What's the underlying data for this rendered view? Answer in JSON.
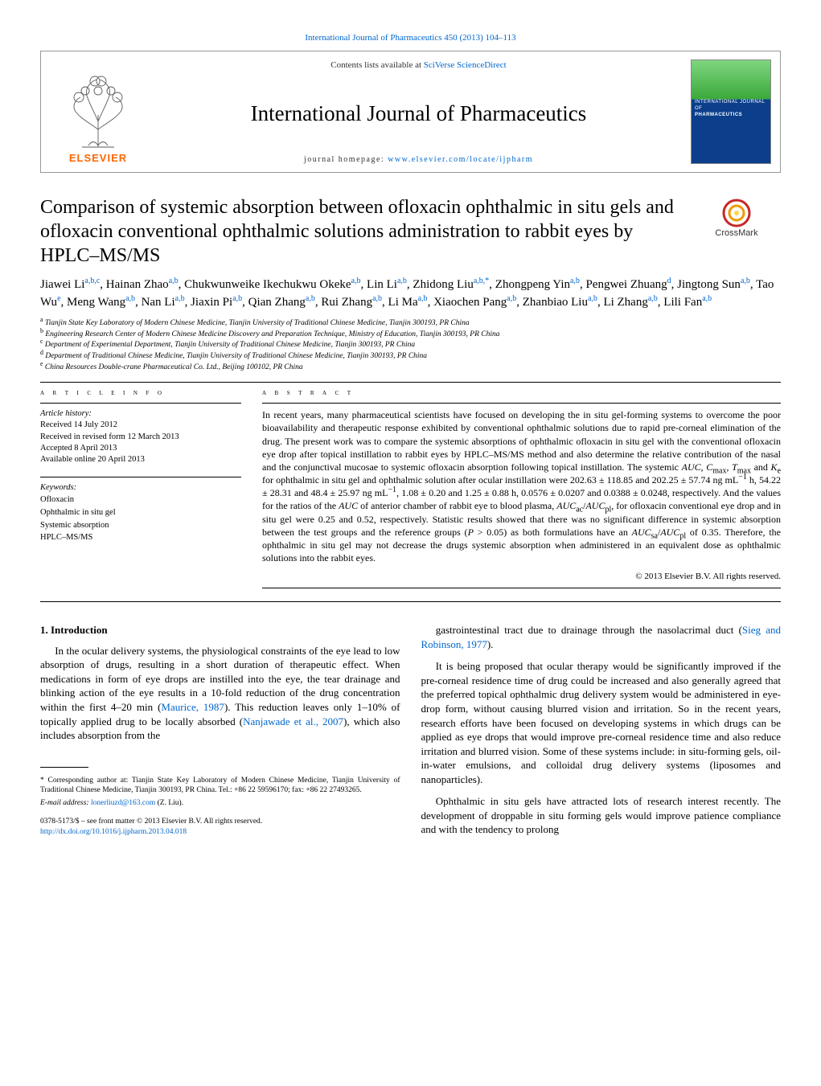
{
  "top_citation": {
    "text": "International Journal of Pharmaceutics 450 (2013) 104–113",
    "color": "#0066cc",
    "fontsize": 11
  },
  "header": {
    "contents_prefix": "Contents lists available at ",
    "contents_link": "SciVerse ScienceDirect",
    "journal_name": "International Journal of Pharmaceutics",
    "homepage_prefix": "journal homepage: ",
    "homepage_url": "www.elsevier.com/locate/ijpharm",
    "publisher_word": "ELSEVIER",
    "publisher_color": "#ff6600",
    "cover_label_top": "INTERNATIONAL JOURNAL OF",
    "cover_label_main": "PHARMACEUTICS",
    "cover_colors": {
      "top": "#7fd67f",
      "mid": "#3aa83a",
      "bottom": "#0b3f8c"
    }
  },
  "crossmark_label": "CrossMark",
  "title": "Comparison of systemic absorption between ofloxacin ophthalmic in situ gels and ofloxacin conventional ophthalmic solutions administration to rabbit eyes by HPLC–MS/MS",
  "authors_html": "Jiawei Li<sup>a,b,c</sup>, Hainan Zhao<sup>a,b</sup>, Chukwunweike Ikechukwu Okeke<sup>a,b</sup>, Lin Li<sup>a,b</sup>, Zhidong Liu<sup>a,b,*</sup>, Zhongpeng Yin<sup>a,b</sup>, Pengwei Zhuang<sup>d</sup>, Jingtong Sun<sup>a,b</sup>, Tao Wu<sup>e</sup>, Meng Wang<sup>a,b</sup>, Nan Li<sup>a,b</sup>, Jiaxin Pi<sup>a,b</sup>, Qian Zhang<sup>a,b</sup>, Rui Zhang<sup>a,b</sup>, Li Ma<sup>a,b</sup>, Xiaochen Pang<sup>a,b</sup>, Zhanbiao Liu<sup>a,b</sup>, Li Zhang<sup>a,b</sup>, Lili Fan<sup>a,b</sup>",
  "affiliations": [
    {
      "key": "a",
      "text": "Tianjin State Key Laboratory of Modern Chinese Medicine, Tianjin University of Traditional Chinese Medicine, Tianjin 300193, PR China"
    },
    {
      "key": "b",
      "text": "Engineering Research Center of Modern Chinese Medicine Discovery and Preparation Technique, Ministry of Education, Tianjin 300193, PR China"
    },
    {
      "key": "c",
      "text": "Department of Experimental Department, Tianjin University of Traditional Chinese Medicine, Tianjin 300193, PR China"
    },
    {
      "key": "d",
      "text": "Department of Traditional Chinese Medicine, Tianjin University of Traditional Chinese Medicine, Tianjin 300193, PR China"
    },
    {
      "key": "e",
      "text": "China Resources Double-crane Pharmaceutical Co. Ltd., Beijing 100102, PR China"
    }
  ],
  "article_info": {
    "heading": "A R T I C L E   I N F O",
    "history_label": "Article history:",
    "history": [
      "Received 14 July 2012",
      "Received in revised form 12 March 2013",
      "Accepted 8 April 2013",
      "Available online 20 April 2013"
    ],
    "keywords_label": "Keywords:",
    "keywords": [
      "Ofloxacin",
      "Ophthalmic in situ gel",
      "Systemic absorption",
      "HPLC–MS/MS"
    ]
  },
  "abstract": {
    "heading": "A B S T R A C T",
    "text": "In recent years, many pharmaceutical scientists have focused on developing the in situ gel-forming systems to overcome the poor bioavailability and therapeutic response exhibited by conventional ophthalmic solutions due to rapid pre-corneal elimination of the drug. The present work was to compare the systemic absorptions of ophthalmic ofloxacin in situ gel with the conventional ofloxacin eye drop after topical instillation to rabbit eyes by HPLC–MS/MS method and also determine the relative contribution of the nasal and the conjunctival mucosae to systemic ofloxacin absorption following topical instillation. The systemic AUC, Cmax, Tmax and Ke for ophthalmic in situ gel and ophthalmic solution after ocular instillation were 202.63 ± 118.85 and 202.25 ± 57.74 ng mL−1 h, 54.22 ± 28.31 and 48.4 ± 25.97 ng mL−1, 1.08 ± 0.20 and 1.25 ± 0.88 h, 0.0576 ± 0.0207 and 0.0388 ± 0.0248, respectively. And the values for the ratios of the AUC of anterior chamber of rabbit eye to blood plasma, AUCac/AUCpl, for ofloxacin conventional eye drop and in situ gel were 0.25 and 0.52, respectively. Statistic results showed that there was no significant difference in systemic absorption between the test groups and the reference groups (P > 0.05) as both formulations have an AUCsa/AUCpl of 0.35. Therefore, the ophthalmic in situ gel may not decrease the drugs systemic absorption when administered in an equivalent dose as ophthalmic solutions into the rabbit eyes.",
    "copyright": "© 2013 Elsevier B.V. All rights reserved."
  },
  "body": {
    "section_number": "1.",
    "section_title": "Introduction",
    "p1": "In the ocular delivery systems, the physiological constraints of the eye lead to low absorption of drugs, resulting in a short duration of therapeutic effect. When medications in form of eye drops are instilled into the eye, the tear drainage and blinking action of the eye results in a 10-fold reduction of the drug concentration within the first 4–20 min (Maurice, 1987). This reduction leaves only 1–10% of topically applied drug to be locally absorbed (Nanjawade et al., 2007), which also includes absorption from the",
    "p2": "gastrointestinal tract due to drainage through the nasolacrimal duct (Sieg and Robinson, 1977).",
    "p3": "It is being proposed that ocular therapy would be significantly improved if the pre-corneal residence time of drug could be increased and also generally agreed that the preferred topical ophthalmic drug delivery system would be administered in eye-drop form, without causing blurred vision and irritation. So in the recent years, research efforts have been focused on developing systems in which drugs can be applied as eye drops that would improve pre-corneal residence time and also reduce irritation and blurred vision. Some of these systems include: in situ-forming gels, oil-in-water emulsions, and colloidal drug delivery systems (liposomes and nanoparticles).",
    "p4": "Ophthalmic in situ gels have attracted lots of research interest recently. The development of droppable in situ forming gels would improve patience compliance and with the tendency to prolong"
  },
  "footnotes": {
    "corresponding": "* Corresponding author at: Tianjin State Key Laboratory of Modern Chinese Medicine, Tianjin University of Traditional Chinese Medicine, Tianjin 300193, PR China. Tel.: +86 22 59596170; fax: +86 22 27493265.",
    "email_label": "E-mail address: ",
    "email": "lonerliuzd@163.com",
    "email_who": " (Z. Liu)."
  },
  "footer": {
    "line1": "0378-5173/$ – see front matter © 2013 Elsevier B.V. All rights reserved.",
    "doi": "http://dx.doi.org/10.1016/j.ijpharm.2013.04.018"
  },
  "colors": {
    "link": "#0066cc",
    "text": "#000000",
    "background": "#ffffff",
    "box_border": "#999999"
  },
  "fontsizes": {
    "title": 24,
    "journal": 27,
    "authors": 15,
    "affiliations": 9.5,
    "body": 13,
    "abstract": 12,
    "info": 10.5
  }
}
